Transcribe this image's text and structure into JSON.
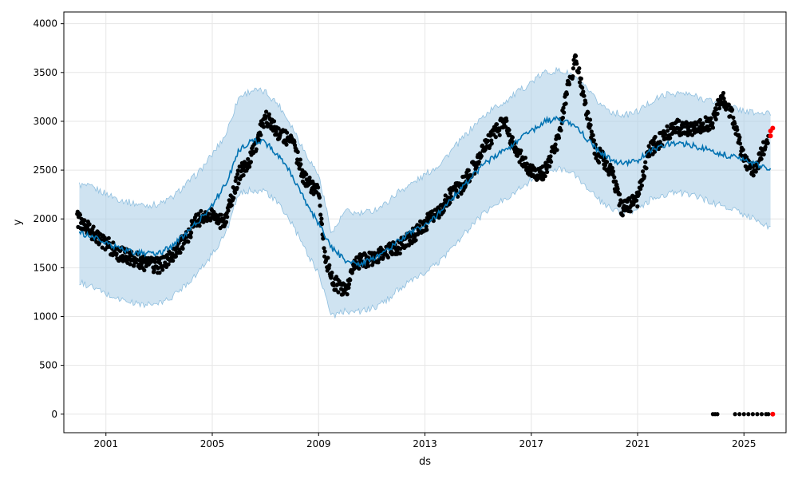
{
  "chart_data": {
    "type": "line",
    "xlabel": "ds",
    "ylabel": "y",
    "x_ticks": [
      "2001",
      "2005",
      "2009",
      "2013",
      "2017",
      "2021",
      "2025"
    ],
    "y_ticks": [
      "0",
      "500",
      "1000",
      "1500",
      "2000",
      "2500",
      "3000",
      "3500",
      "4000"
    ],
    "xlim": [
      "1999-06-01",
      "2026-08-01"
    ],
    "ylim": [
      -190,
      4120
    ],
    "grid": true,
    "series": [
      {
        "role": "forecast",
        "color": "#0072b2",
        "x": [
          "2000-01",
          "2000-07",
          "2001-01",
          "2001-07",
          "2002-01",
          "2002-07",
          "2003-01",
          "2003-07",
          "2004-01",
          "2004-07",
          "2005-01",
          "2005-07",
          "2006-01",
          "2006-07",
          "2007-01",
          "2007-07",
          "2008-01",
          "2008-07",
          "2009-01",
          "2009-07",
          "2010-01",
          "2010-07",
          "2011-01",
          "2011-07",
          "2012-01",
          "2012-07",
          "2013-01",
          "2013-07",
          "2014-01",
          "2014-07",
          "2015-01",
          "2015-07",
          "2016-01",
          "2016-07",
          "2017-01",
          "2017-07",
          "2018-01",
          "2018-07",
          "2019-01",
          "2019-07",
          "2020-01",
          "2020-07",
          "2021-01",
          "2021-07",
          "2022-01",
          "2022-07",
          "2023-01",
          "2023-07",
          "2024-01",
          "2024-07",
          "2025-01",
          "2025-07",
          "2026-01"
        ],
        "y": [
          1850,
          1820,
          1760,
          1700,
          1660,
          1640,
          1650,
          1720,
          1850,
          1980,
          2150,
          2350,
          2700,
          2800,
          2780,
          2650,
          2450,
          2180,
          1950,
          1700,
          1580,
          1540,
          1580,
          1650,
          1780,
          1860,
          1950,
          2050,
          2200,
          2350,
          2500,
          2620,
          2700,
          2800,
          2900,
          3000,
          3020,
          2980,
          2850,
          2700,
          2600,
          2560,
          2600,
          2700,
          2760,
          2780,
          2760,
          2720,
          2680,
          2640,
          2600,
          2560,
          2500
        ]
      },
      {
        "role": "uncertainty-band",
        "color": "#a8cce6",
        "x": [
          "2000-01",
          "2000-07",
          "2001-01",
          "2001-07",
          "2002-01",
          "2002-07",
          "2003-01",
          "2003-07",
          "2004-01",
          "2004-07",
          "2005-01",
          "2005-07",
          "2006-01",
          "2006-07",
          "2007-01",
          "2007-07",
          "2008-01",
          "2008-07",
          "2009-01",
          "2009-07",
          "2010-01",
          "2010-07",
          "2011-01",
          "2011-07",
          "2012-01",
          "2012-07",
          "2013-01",
          "2013-07",
          "2014-01",
          "2014-07",
          "2015-01",
          "2015-07",
          "2016-01",
          "2016-07",
          "2017-01",
          "2017-07",
          "2018-01",
          "2018-07",
          "2019-01",
          "2019-07",
          "2020-01",
          "2020-07",
          "2021-01",
          "2021-07",
          "2022-01",
          "2022-07",
          "2023-01",
          "2023-07",
          "2024-01",
          "2024-07",
          "2025-01",
          "2025-07",
          "2026-01"
        ],
        "lower": [
          1350,
          1300,
          1230,
          1180,
          1140,
          1120,
          1130,
          1200,
          1330,
          1460,
          1640,
          1850,
          2250,
          2300,
          2280,
          2150,
          1950,
          1680,
          1450,
          1000,
          1060,
          1050,
          1080,
          1150,
          1280,
          1360,
          1450,
          1550,
          1700,
          1850,
          2000,
          2120,
          2200,
          2300,
          2400,
          2500,
          2520,
          2480,
          2350,
          2200,
          2100,
          2060,
          2100,
          2200,
          2250,
          2270,
          2250,
          2200,
          2150,
          2100,
          2050,
          1990,
          1900
        ],
        "upper": [
          2350,
          2320,
          2260,
          2200,
          2160,
          2140,
          2150,
          2220,
          2350,
          2480,
          2660,
          2860,
          3250,
          3320,
          3300,
          3170,
          2950,
          2680,
          2450,
          1850,
          2080,
          2050,
          2080,
          2150,
          2280,
          2360,
          2450,
          2550,
          2700,
          2850,
          3000,
          3120,
          3200,
          3300,
          3400,
          3500,
          3520,
          3480,
          3350,
          3200,
          3100,
          3060,
          3100,
          3200,
          3270,
          3290,
          3270,
          3230,
          3190,
          3150,
          3110,
          3080,
          3080
        ]
      },
      {
        "role": "observed",
        "color": "#000000",
        "x": [
          "1999-12",
          "2000-03",
          "2000-07",
          "2001-01",
          "2001-06",
          "2002-01",
          "2002-06",
          "2003-01",
          "2003-06",
          "2004-01",
          "2004-06",
          "2005-01",
          "2005-06",
          "2006-01",
          "2006-06",
          "2007-01",
          "2007-06",
          "2008-01",
          "2008-06",
          "2009-01",
          "2009-04",
          "2009-08",
          "2010-01",
          "2010-06",
          "2011-01",
          "2011-06",
          "2012-01",
          "2012-06",
          "2013-01",
          "2013-06",
          "2014-01",
          "2014-06",
          "2015-01",
          "2015-06",
          "2016-01",
          "2016-06",
          "2017-01",
          "2017-06",
          "2018-01",
          "2018-04",
          "2018-09",
          "2019-01",
          "2019-06",
          "2020-01",
          "2020-06",
          "2021-01",
          "2021-06",
          "2022-01",
          "2022-06",
          "2023-01",
          "2023-06",
          "2023-11",
          "2024-03",
          "2024-07",
          "2025-01",
          "2025-06",
          "2025-12"
        ],
        "y": [
          2000,
          1950,
          1850,
          1750,
          1650,
          1600,
          1550,
          1520,
          1600,
          1800,
          2000,
          2050,
          1950,
          2450,
          2600,
          3050,
          2900,
          2800,
          2450,
          2250,
          1600,
          1350,
          1250,
          1550,
          1600,
          1650,
          1700,
          1800,
          1950,
          2050,
          2250,
          2350,
          2600,
          2800,
          3000,
          2700,
          2500,
          2450,
          2800,
          3200,
          3650,
          3200,
          2700,
          2500,
          2100,
          2200,
          2700,
          2850,
          2950,
          2900,
          2950,
          3000,
          3250,
          3100,
          2600,
          2500,
          2850
        ]
      },
      {
        "role": "observed-zero",
        "color": "#000000",
        "x": [
          "2023-11",
          "2023-12",
          "2024-01",
          "2024-09",
          "2024-11",
          "2025-01",
          "2025-03",
          "2025-05",
          "2025-07",
          "2025-09",
          "2025-11",
          "2025-12"
        ],
        "y": [
          0,
          0,
          0,
          0,
          0,
          0,
          0,
          0,
          0,
          0,
          0,
          0
        ]
      },
      {
        "role": "highlighted",
        "color": "#ff0000",
        "x": [
          "2026-01",
          "2026-01",
          "2026-02",
          "2026-02"
        ],
        "y": [
          2850,
          2900,
          2930,
          0
        ]
      }
    ]
  }
}
